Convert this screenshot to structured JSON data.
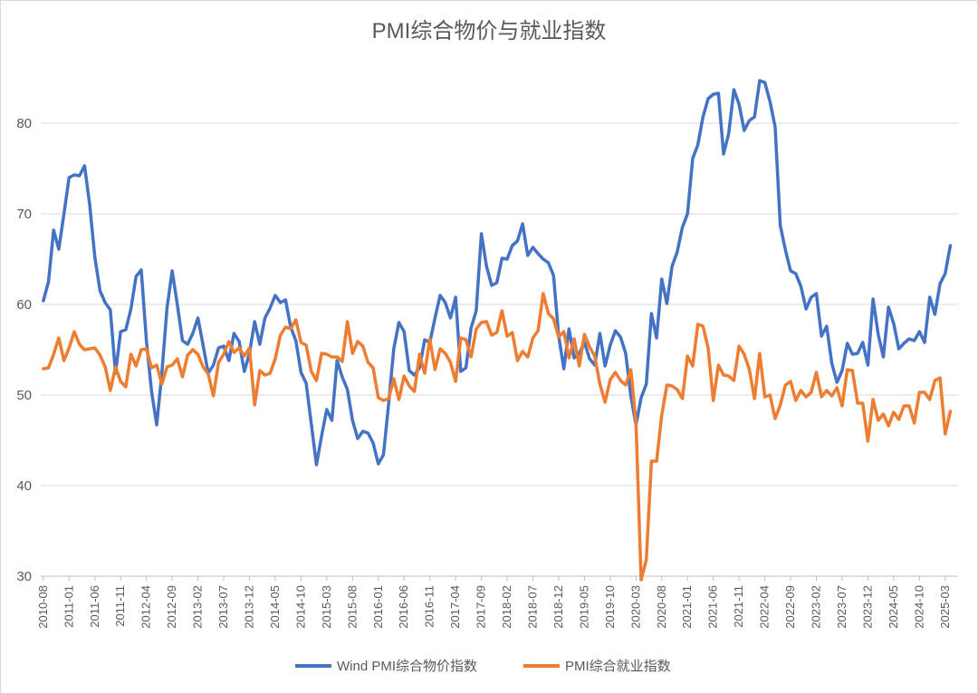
{
  "chart_data": {
    "type": "line",
    "title": "PMI综合物价与就业指数",
    "xlabel": "",
    "ylabel": "",
    "ylim": [
      30,
      85
    ],
    "yticks": [
      30,
      40,
      50,
      60,
      70,
      80
    ],
    "x_tick_labels": [
      "2010-08",
      "2011-01",
      "2011-06",
      "2011-11",
      "2012-04",
      "2012-09",
      "2013-02",
      "2013-07",
      "2013-12",
      "2014-05",
      "2014-10",
      "2015-03",
      "2015-08",
      "2016-01",
      "2016-06",
      "2016-11",
      "2017-04",
      "2017-09",
      "2018-02",
      "2018-07",
      "2018-12",
      "2019-05",
      "2019-10",
      "2020-03",
      "2020-08",
      "2021-01",
      "2021-06",
      "2021-11",
      "2022-04",
      "2022-09",
      "2023-02",
      "2023-07",
      "2023-12",
      "2024-05",
      "2024-10",
      "2025-03"
    ],
    "x_start": "2010-08",
    "x_end": "2025-05",
    "grid": "horizontal",
    "legend_position": "bottom",
    "series": [
      {
        "name": "Wind PMI综合物价指数",
        "color": "#4472c4",
        "values": [
          60.4,
          62.5,
          68.2,
          66.1,
          70.0,
          74.0,
          74.3,
          74.2,
          75.3,
          71.0,
          65.2,
          61.5,
          60.2,
          59.4,
          52.4,
          57.0,
          57.2,
          59.5,
          63.1,
          63.8,
          56.0,
          50.4,
          46.7,
          52.4,
          59.6,
          63.7,
          60.0,
          56.0,
          55.6,
          56.8,
          58.5,
          55.5,
          52.4,
          53.3,
          55.2,
          55.4,
          53.8,
          56.8,
          55.9,
          52.6,
          54.6,
          58.1,
          55.6,
          58.5,
          59.6,
          61.0,
          60.2,
          60.5,
          57.5,
          56.0,
          52.5,
          51.3,
          46.8,
          42.3,
          45.5,
          48.4,
          47.2,
          53.8,
          52.0,
          50.6,
          47.2,
          45.2,
          46.0,
          45.8,
          44.7,
          42.4,
          43.4,
          49.0,
          55.1,
          58.0,
          57.0,
          52.7,
          52.2,
          53.0,
          56.1,
          55.8,
          58.5,
          61.0,
          60.2,
          58.5,
          60.8,
          52.6,
          53.0,
          57.4,
          59.3,
          67.8,
          64.2,
          62.1,
          62.4,
          65.1,
          65.0,
          66.5,
          67.0,
          68.9,
          65.4,
          66.3,
          65.6,
          65.0,
          64.6,
          63.2,
          56.5,
          52.9,
          57.3,
          54.1,
          54.6,
          55.8,
          54.0,
          53.3,
          56.8,
          53.2,
          55.5,
          57.1,
          56.4,
          54.6,
          49.9,
          46.7,
          49.7,
          51.2,
          59.0,
          56.3,
          62.8,
          60.1,
          64.2,
          65.8,
          68.5,
          70.0,
          76.1,
          77.6,
          80.7,
          82.7,
          83.2,
          83.3,
          76.6,
          78.9,
          83.7,
          82.1,
          79.2,
          80.3,
          80.7,
          84.7,
          84.5,
          82.4,
          79.6,
          68.7,
          66.0,
          63.7,
          63.4,
          62.0,
          59.5,
          60.8,
          61.2,
          56.5,
          57.6,
          53.5,
          51.4,
          52.7,
          55.7,
          54.5,
          54.6,
          55.8,
          53.3,
          60.6,
          56.7,
          54.2,
          59.7,
          57.9,
          55.1,
          55.7,
          56.2,
          56.0,
          57.0,
          55.8,
          60.8,
          58.9,
          62.3,
          63.4,
          66.5
        ]
      },
      {
        "name": "PMI综合就业指数",
        "color": "#ed7d31",
        "values": [
          52.9,
          53.0,
          54.5,
          56.3,
          53.8,
          55.2,
          57.0,
          55.6,
          55.0,
          55.1,
          55.2,
          54.4,
          53.1,
          50.5,
          53.1,
          51.5,
          50.9,
          54.5,
          53.2,
          55.0,
          55.1,
          53.0,
          53.3,
          51.2,
          53.1,
          53.3,
          54.0,
          52.0,
          54.4,
          55.0,
          54.5,
          53.1,
          52.3,
          49.9,
          53.6,
          54.5,
          55.9,
          54.7,
          55.2,
          54.3,
          55.2,
          48.9,
          52.7,
          52.2,
          52.4,
          54.0,
          56.6,
          57.5,
          57.3,
          58.3,
          55.8,
          55.5,
          52.6,
          51.6,
          54.6,
          54.5,
          54.2,
          54.2,
          53.7,
          58.1,
          54.6,
          55.9,
          55.4,
          53.6,
          53.0,
          49.7,
          49.4,
          49.6,
          51.8,
          49.5,
          52.1,
          51.0,
          50.4,
          54.5,
          52.4,
          56.2,
          52.8,
          55.1,
          54.6,
          53.6,
          51.5,
          56.3,
          56.1,
          54.2,
          57.3,
          58.0,
          58.1,
          56.6,
          56.9,
          59.3,
          56.5,
          56.9,
          53.8,
          54.8,
          54.2,
          56.3,
          57.1,
          61.2,
          59.0,
          58.4,
          56.4,
          57.0,
          54.1,
          56.2,
          53.2,
          56.7,
          55.3,
          54.3,
          51.2,
          49.2,
          51.7,
          52.5,
          51.6,
          51.1,
          52.8,
          47.0,
          29.6,
          31.8,
          42.7,
          42.7,
          47.8,
          51.1,
          51.0,
          50.6,
          49.6,
          54.3,
          53.2,
          57.8,
          57.6,
          55.2,
          49.4,
          53.3,
          52.2,
          52.1,
          51.6,
          55.4,
          54.5,
          52.8,
          49.6,
          54.6,
          49.8,
          50.0,
          47.4,
          48.9,
          51.1,
          51.5,
          49.4,
          50.5,
          49.8,
          50.3,
          52.5,
          49.8,
          50.5,
          49.9,
          50.8,
          48.8,
          52.8,
          52.7,
          49.1,
          49.1,
          44.9,
          49.5,
          47.2,
          47.9,
          46.6,
          48.1,
          47.3,
          48.8,
          48.8,
          46.9,
          50.3,
          50.3,
          49.5,
          51.6,
          51.9,
          45.7,
          48.2
        ]
      }
    ]
  }
}
